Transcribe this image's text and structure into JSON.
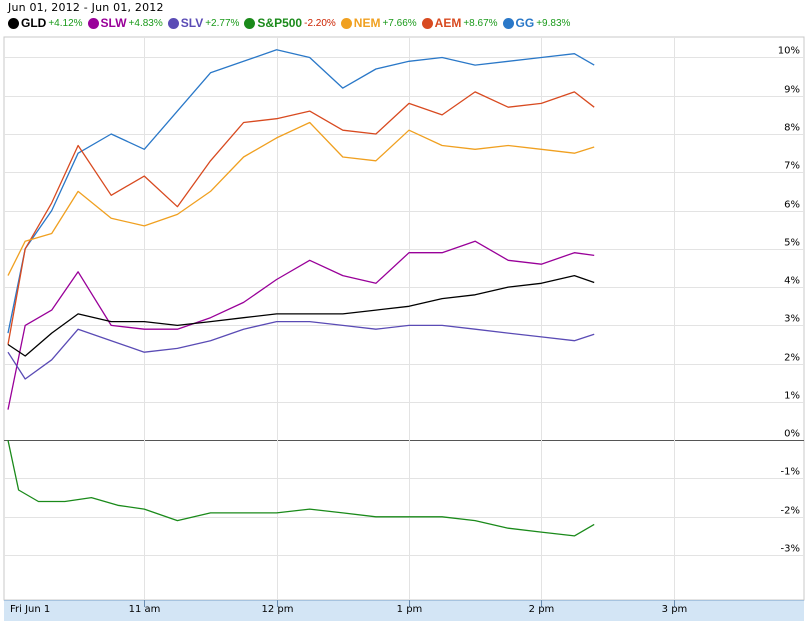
{
  "date_range": {
    "start": "Jun 01, 2012",
    "separator": " - ",
    "end": "Jun 01, 2012"
  },
  "legend": [
    {
      "symbol": "GLD",
      "change": "+4.12%",
      "color": "#000000",
      "change_color": "#1a9a1a"
    },
    {
      "symbol": "SLW",
      "change": "+4.83%",
      "color": "#990099",
      "change_color": "#1a9a1a"
    },
    {
      "symbol": "SLV",
      "change": "+2.77%",
      "color": "#5a4bb5",
      "change_color": "#1a9a1a"
    },
    {
      "symbol": "S&P500",
      "change": "-2.20%",
      "color": "#1a8a1a",
      "change_color": "#cc2200"
    },
    {
      "symbol": "NEM",
      "change": "+7.66%",
      "color": "#f0a020",
      "change_color": "#1a9a1a"
    },
    {
      "symbol": "AEM",
      "change": "+8.67%",
      "color": "#d84a20",
      "change_color": "#1a9a1a"
    },
    {
      "symbol": "GG",
      "change": "+9.83%",
      "color": "#2a78c8",
      "change_color": "#1a9a1a"
    }
  ],
  "chart_data": {
    "type": "line",
    "title": "",
    "xlabel": "",
    "ylabel": "",
    "x_ticks": [
      "Fri Jun 1",
      "11 am",
      "12 pm",
      "1 pm",
      "2 pm",
      "3 pm"
    ],
    "x_tick_hours": [
      10.0,
      11.0,
      12.0,
      13.0,
      14.0,
      15.0
    ],
    "x_range_hours": [
      9.97,
      15.97
    ],
    "y_ticks": [
      "10%",
      "9%",
      "8%",
      "7%",
      "6%",
      "5%",
      "4%",
      "3%",
      "2%",
      "1%",
      "0%",
      "-1%",
      "-2%",
      "-3%"
    ],
    "y_tick_values": [
      10,
      9,
      8,
      7,
      6,
      5,
      4,
      3,
      2,
      1,
      0,
      -1,
      -2,
      -3
    ],
    "ylim": [
      -3.6,
      10.3
    ],
    "grid": true,
    "series": [
      {
        "name": "GG",
        "color": "#2a78c8",
        "x": [
          9.97,
          10.1,
          10.3,
          10.5,
          10.75,
          11.0,
          11.25,
          11.5,
          11.75,
          12.0,
          12.25,
          12.5,
          12.75,
          13.0,
          13.25,
          13.5,
          13.75,
          14.0,
          14.25,
          14.4
        ],
        "y": [
          2.8,
          5.0,
          6.0,
          7.5,
          8.0,
          7.6,
          8.6,
          9.6,
          9.9,
          10.2,
          10.0,
          9.2,
          9.7,
          9.9,
          10.0,
          9.8,
          9.9,
          10.0,
          10.1,
          9.8
        ]
      },
      {
        "name": "AEM",
        "color": "#d84a20",
        "x": [
          9.97,
          10.1,
          10.3,
          10.5,
          10.75,
          11.0,
          11.25,
          11.5,
          11.75,
          12.0,
          12.25,
          12.5,
          12.75,
          13.0,
          13.25,
          13.5,
          13.75,
          14.0,
          14.25,
          14.4
        ],
        "y": [
          2.5,
          5.0,
          6.2,
          7.7,
          6.4,
          6.9,
          6.1,
          7.3,
          8.3,
          8.4,
          8.6,
          8.1,
          8.0,
          8.8,
          8.5,
          9.1,
          8.7,
          8.8,
          9.1,
          8.7
        ]
      },
      {
        "name": "NEM",
        "color": "#f0a020",
        "x": [
          9.97,
          10.1,
          10.3,
          10.5,
          10.75,
          11.0,
          11.25,
          11.5,
          11.75,
          12.0,
          12.25,
          12.5,
          12.75,
          13.0,
          13.25,
          13.5,
          13.75,
          14.0,
          14.25,
          14.4
        ],
        "y": [
          4.3,
          5.2,
          5.4,
          6.5,
          5.8,
          5.6,
          5.9,
          6.5,
          7.4,
          7.9,
          8.3,
          7.4,
          7.3,
          8.1,
          7.7,
          7.6,
          7.7,
          7.6,
          7.5,
          7.66
        ]
      },
      {
        "name": "SLW",
        "color": "#990099",
        "x": [
          9.97,
          10.1,
          10.3,
          10.5,
          10.75,
          11.0,
          11.25,
          11.5,
          11.75,
          12.0,
          12.25,
          12.5,
          12.75,
          13.0,
          13.25,
          13.5,
          13.75,
          14.0,
          14.25,
          14.4
        ],
        "y": [
          0.8,
          3.0,
          3.4,
          4.4,
          3.0,
          2.9,
          2.9,
          3.2,
          3.6,
          4.2,
          4.7,
          4.3,
          4.1,
          4.9,
          4.9,
          5.2,
          4.7,
          4.6,
          4.9,
          4.83
        ]
      },
      {
        "name": "GLD",
        "color": "#000000",
        "x": [
          9.97,
          10.1,
          10.3,
          10.5,
          10.75,
          11.0,
          11.25,
          11.5,
          11.75,
          12.0,
          12.25,
          12.5,
          12.75,
          13.0,
          13.25,
          13.5,
          13.75,
          14.0,
          14.25,
          14.4
        ],
        "y": [
          2.5,
          2.2,
          2.8,
          3.3,
          3.1,
          3.1,
          3.0,
          3.1,
          3.2,
          3.3,
          3.3,
          3.3,
          3.4,
          3.5,
          3.7,
          3.8,
          4.0,
          4.1,
          4.3,
          4.12
        ]
      },
      {
        "name": "SLV",
        "color": "#5a4bb5",
        "x": [
          9.97,
          10.1,
          10.3,
          10.5,
          10.75,
          11.0,
          11.25,
          11.5,
          11.75,
          12.0,
          12.25,
          12.5,
          12.75,
          13.0,
          13.25,
          13.5,
          13.75,
          14.0,
          14.25,
          14.4
        ],
        "y": [
          2.3,
          1.6,
          2.1,
          2.9,
          2.6,
          2.3,
          2.4,
          2.6,
          2.9,
          3.1,
          3.1,
          3.0,
          2.9,
          3.0,
          3.0,
          2.9,
          2.8,
          2.7,
          2.6,
          2.77
        ]
      },
      {
        "name": "S&P500",
        "color": "#1a8a1a",
        "x": [
          9.97,
          10.05,
          10.2,
          10.4,
          10.6,
          10.8,
          11.0,
          11.25,
          11.5,
          11.75,
          12.0,
          12.25,
          12.5,
          12.75,
          13.0,
          13.25,
          13.5,
          13.75,
          14.0,
          14.25,
          14.4
        ],
        "y": [
          0.0,
          -1.3,
          -1.6,
          -1.6,
          -1.5,
          -1.7,
          -1.8,
          -2.1,
          -1.9,
          -1.9,
          -1.9,
          -1.8,
          -1.9,
          -2.0,
          -2.0,
          -2.0,
          -2.1,
          -2.3,
          -2.4,
          -2.5,
          -2.2
        ]
      }
    ]
  }
}
